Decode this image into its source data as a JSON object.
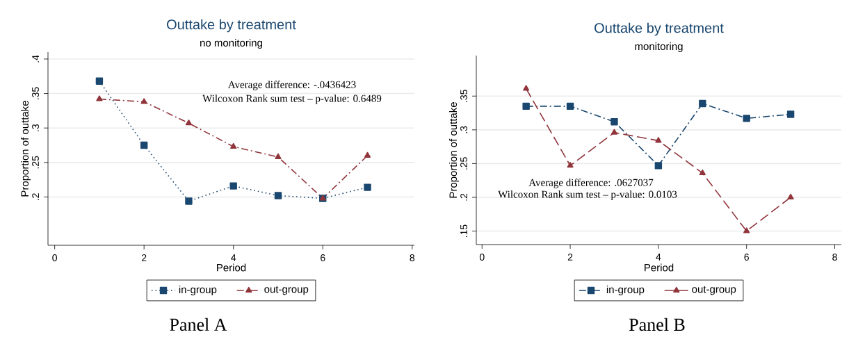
{
  "chart_data": [
    {
      "type": "line",
      "title": "Outtake by treatment",
      "subtitle": "no monitoring",
      "xlabel": "Period",
      "ylabel": "Proportion of outtake",
      "x": [
        1,
        2,
        3,
        4,
        5,
        6,
        7
      ],
      "series": [
        {
          "name": "in-group",
          "color": "#1a476f",
          "marker": "square",
          "line_style": "dotted",
          "values": [
            0.368,
            0.275,
            0.194,
            0.216,
            0.202,
            0.198,
            0.214
          ]
        },
        {
          "name": "out-group",
          "color": "#90353b",
          "marker": "triangle",
          "line_style": "dashdot",
          "values": [
            0.342,
            0.338,
            0.307,
            0.273,
            0.258,
            0.198,
            0.26
          ]
        }
      ],
      "xlim": [
        -0.15,
        8.05
      ],
      "xticks": [
        0,
        2,
        4,
        6,
        8
      ],
      "ylim": [
        0.13,
        0.41
      ],
      "yticks": [
        {
          "value": 0.2,
          "label": ".2"
        },
        {
          "value": 0.25,
          "label": ".25"
        },
        {
          "value": 0.3,
          "label": ".3"
        },
        {
          "value": 0.35,
          "label": ".35"
        },
        {
          "value": 0.4,
          "label": ".4"
        }
      ],
      "grid": "y",
      "legend": "bottom",
      "annotations": [
        "Average difference:  -.0436423",
        "Wilcoxon Rank sum test – p-value:  0.6489",
        "Panel A"
      ]
    },
    {
      "type": "line",
      "title": "Outtake by treatment",
      "subtitle": "monitoring",
      "xlabel": "Period",
      "ylabel": "Proportion of outtake",
      "x": [
        1,
        2,
        3,
        4,
        5,
        6,
        7
      ],
      "series": [
        {
          "name": "in-group",
          "color": "#1a476f",
          "marker": "square",
          "line_style": "dashdot",
          "values": [
            0.335,
            0.335,
            0.312,
            0.247,
            0.339,
            0.317,
            0.323
          ]
        },
        {
          "name": "out-group",
          "color": "#90353b",
          "marker": "triangle",
          "line_style": "dashed",
          "values": [
            0.361,
            0.247,
            0.296,
            0.284,
            0.236,
            0.15,
            0.2
          ]
        }
      ],
      "xlim": [
        -0.13,
        8.15
      ],
      "xticks": [
        0,
        2,
        4,
        6,
        8
      ],
      "ylim": [
        0.13,
        0.41
      ],
      "yticks": [
        {
          "value": 0.15,
          "label": ".15"
        },
        {
          "value": 0.2,
          "label": ".2"
        },
        {
          "value": 0.25,
          "label": ".25"
        },
        {
          "value": 0.3,
          "label": ".3"
        },
        {
          "value": 0.35,
          "label": ".35"
        }
      ],
      "grid": "y",
      "legend": "bottom",
      "annotations": [
        "Average difference: .0627037",
        "Wilcoxon Rank sum test – p-value:  0.0103",
        "Panel B"
      ]
    }
  ]
}
